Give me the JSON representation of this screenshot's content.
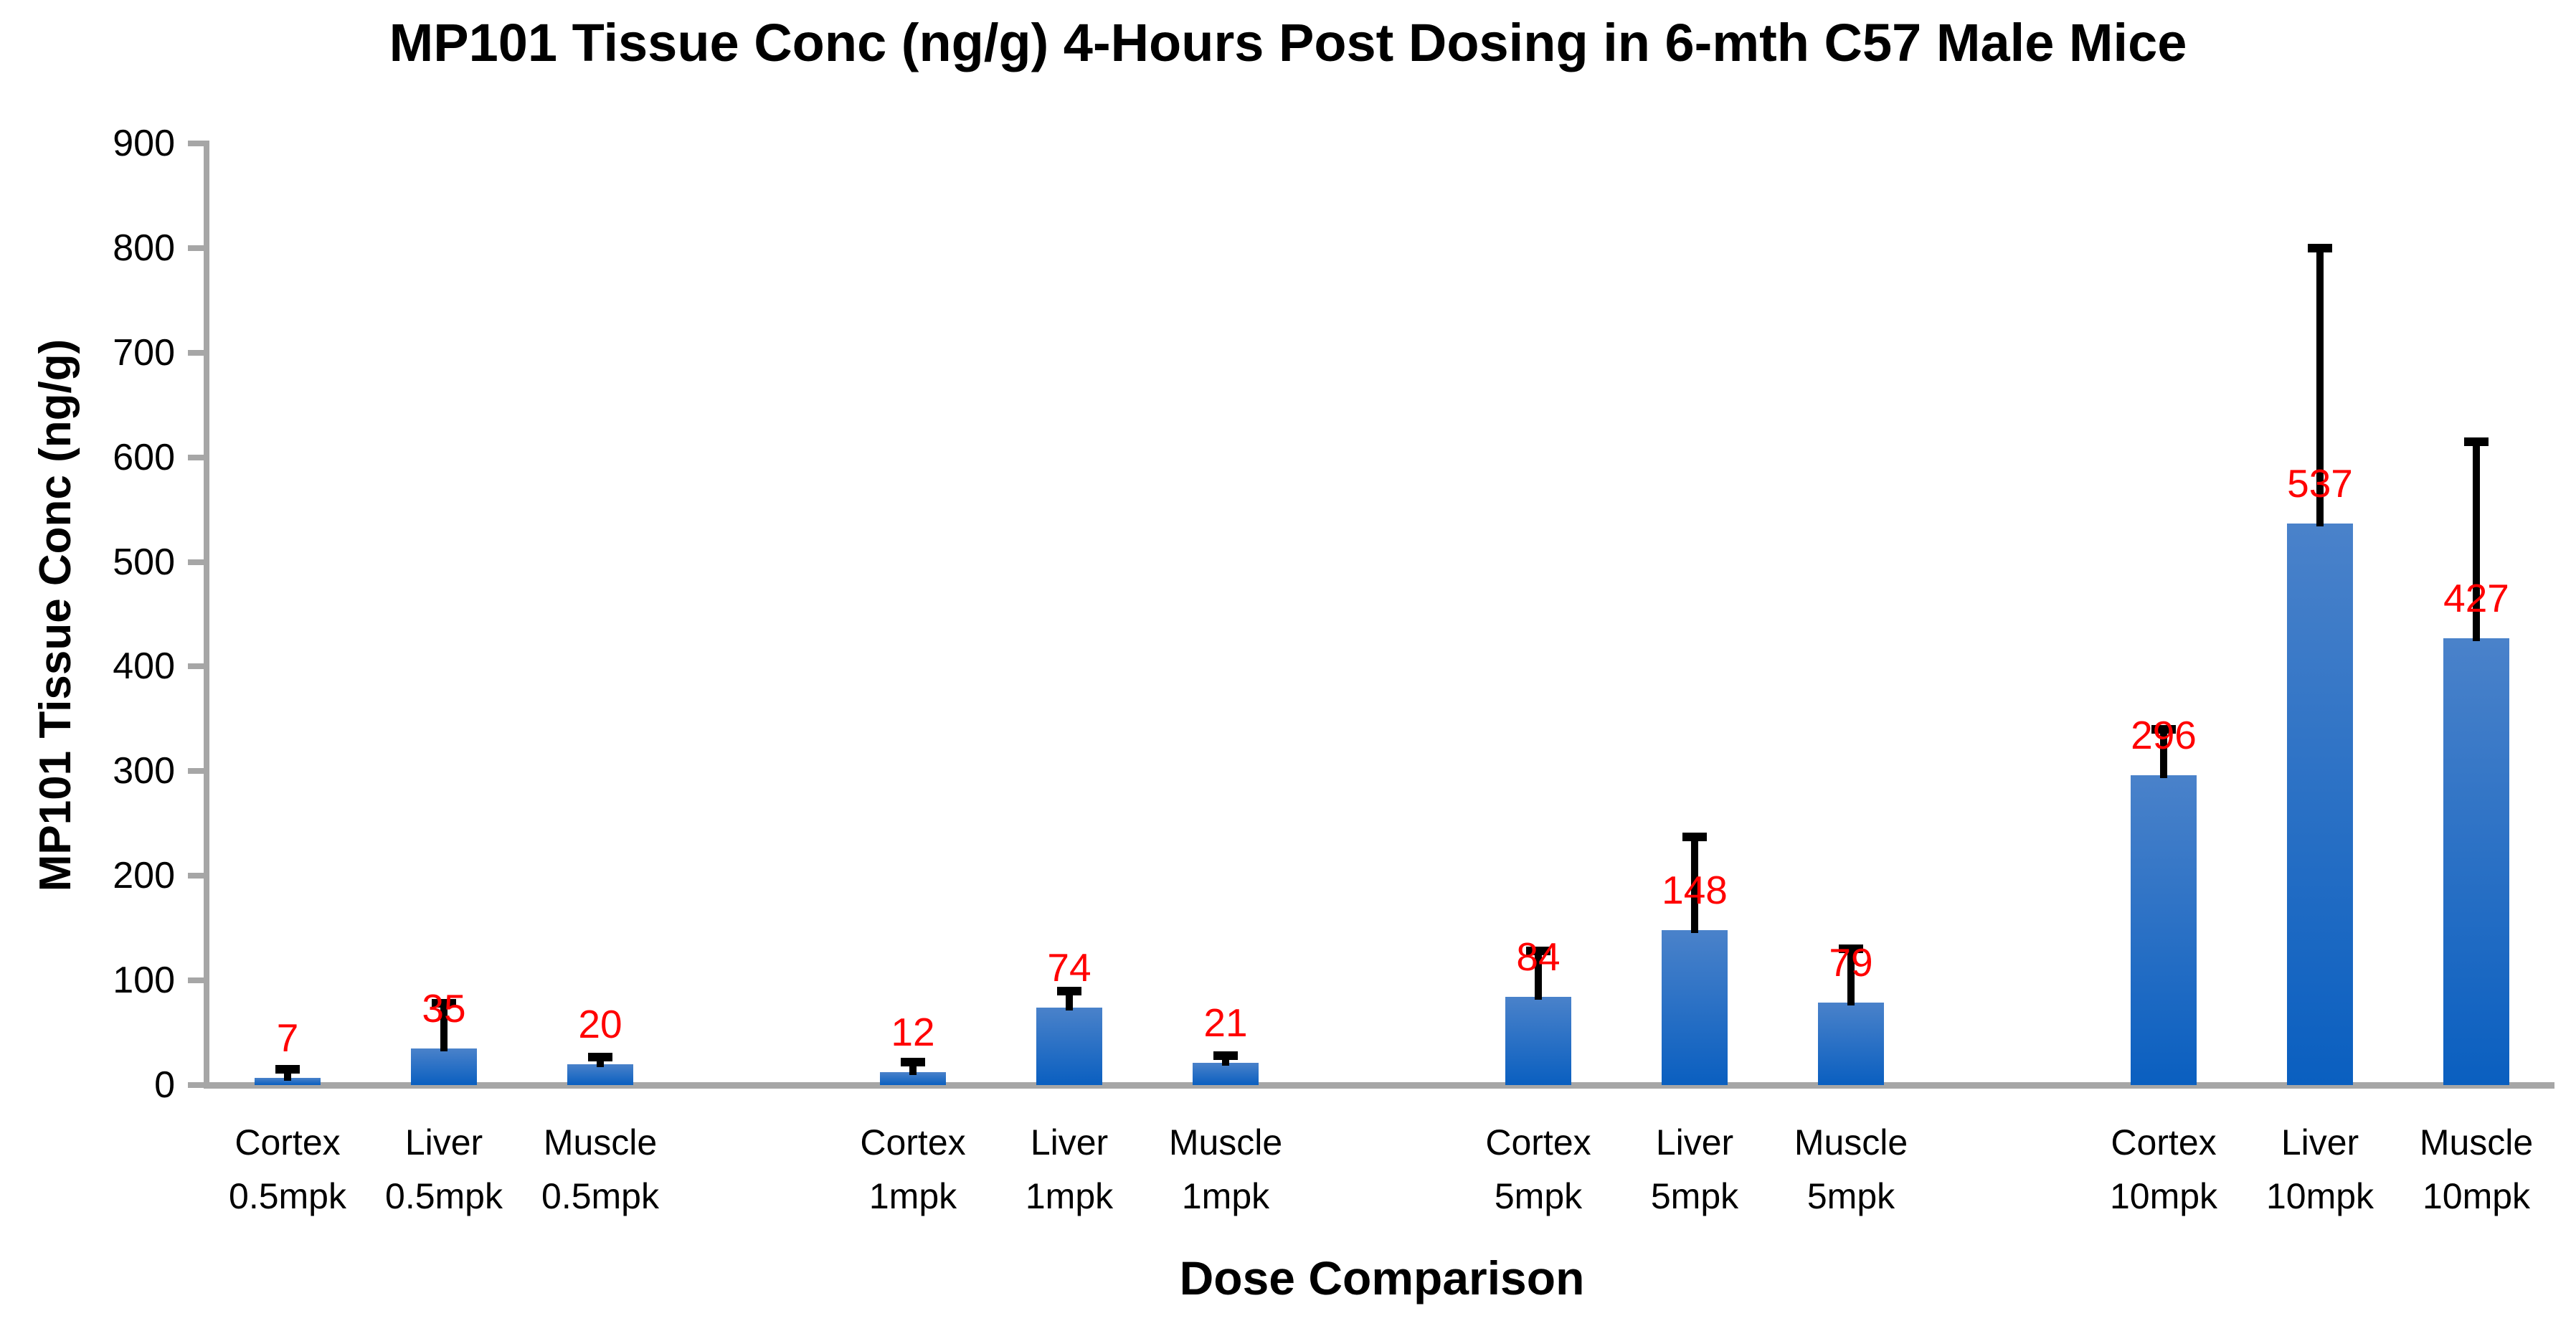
{
  "page": {
    "background": "#ffffff"
  },
  "chart_data": {
    "type": "bar",
    "title": "MP101 Tissue Conc (ng/g) 4-Hours Post Dosing in 6-mth C57 Male Mice",
    "xlabel": "Dose Comparison",
    "ylabel": "MP101 Tissue Conc (ng/g)",
    "ylim": [
      0,
      900
    ],
    "ytick_step": 100,
    "yticks": [
      "0",
      "100",
      "200",
      "300",
      "400",
      "500",
      "600",
      "700",
      "800",
      "900"
    ],
    "grid": false,
    "legend": false,
    "style": {
      "bar_color_top": "#4a82ca",
      "bar_color_bottom": "#0a5fc0",
      "value_label_color": "#ff0000",
      "error_bar_color": "#000000",
      "axis_color": "#a6a6a6",
      "text_color": "#000000"
    },
    "categories": [
      "Cortex 0.5mpk",
      "Liver 0.5mpk",
      "Muscle 0.5mpk",
      "Cortex 1mpk",
      "Liver 1mpk",
      "Muscle 1mpk",
      "Cortex 5mpk",
      "Liver 5mpk",
      "Muscle 5mpk",
      "Cortex 10mpk",
      "Liver 10mpk",
      "Muscle 10mpk"
    ],
    "values": [
      7,
      35,
      20,
      12,
      74,
      21,
      84,
      148,
      79,
      296,
      537,
      427
    ],
    "groups": [
      {
        "dose": "0.5mpk",
        "bars": [
          {
            "tissue": "Cortex",
            "value": 7,
            "error_top": 15
          },
          {
            "tissue": "Liver",
            "value": 35,
            "error_top": 78
          },
          {
            "tissue": "Muscle",
            "value": 20,
            "error_top": 27
          }
        ]
      },
      {
        "dose": "1mpk",
        "bars": [
          {
            "tissue": "Cortex",
            "value": 12,
            "error_top": 22
          },
          {
            "tissue": "Liver",
            "value": 74,
            "error_top": 90
          },
          {
            "tissue": "Muscle",
            "value": 21,
            "error_top": 28
          }
        ]
      },
      {
        "dose": "5mpk",
        "bars": [
          {
            "tissue": "Cortex",
            "value": 84,
            "error_top": 128
          },
          {
            "tissue": "Liver",
            "value": 148,
            "error_top": 237
          },
          {
            "tissue": "Muscle",
            "value": 79,
            "error_top": 130
          }
        ]
      },
      {
        "dose": "10mpk",
        "bars": [
          {
            "tissue": "Cortex",
            "value": 296,
            "error_top": 340
          },
          {
            "tissue": "Liver",
            "value": 537,
            "error_top": 800
          },
          {
            "tissue": "Muscle",
            "value": 427,
            "error_top": 615
          }
        ]
      }
    ]
  }
}
